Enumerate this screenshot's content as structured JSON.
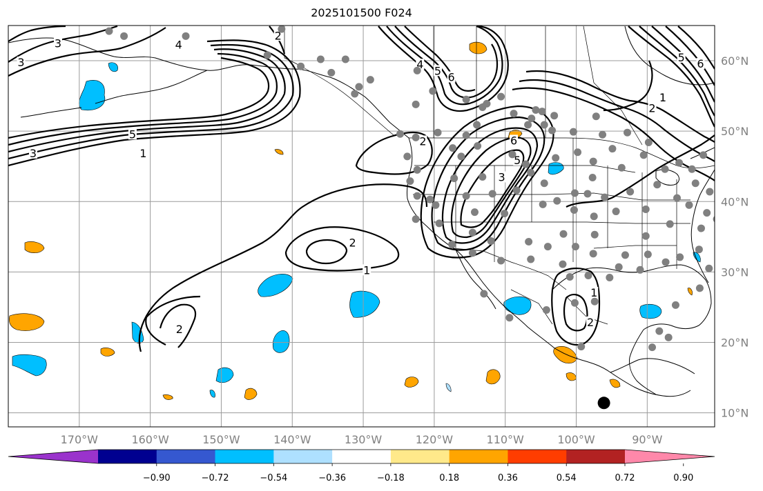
{
  "title": "2025101500 F024",
  "lon_labels": [
    {
      "text": "170°W",
      "lon": -170
    },
    {
      "text": "160°W",
      "lon": -160
    },
    {
      "text": "150°W",
      "lon": -150
    },
    {
      "text": "140°W",
      "lon": -140
    },
    {
      "text": "130°W",
      "lon": -130
    },
    {
      "text": "120°W",
      "lon": -120
    },
    {
      "text": "110°W",
      "lon": -110
    },
    {
      "text": "100°W",
      "lon": -100
    },
    {
      "text": "90°W",
      "lon": -90
    }
  ],
  "lat_labels": [
    {
      "text": "60°N",
      "lat": 60
    },
    {
      "text": "50°N",
      "lat": 50
    },
    {
      "text": "40°N",
      "lat": 40
    },
    {
      "text": "30°N",
      "lat": 30
    },
    {
      "text": "20°N",
      "lat": 20
    },
    {
      "text": "10°N",
      "lat": 10
    }
  ],
  "map_extent": {
    "lon_min": -180,
    "lon_max": -80.5,
    "lat_min": 8,
    "lat_max": 65
  },
  "colorbar": {
    "colors": [
      "#9a33cc",
      "#000090",
      "#3558d0",
      "#00bfff",
      "#aee0ff",
      "#ffffff",
      "#ffe98a",
      "#ffa500",
      "#ff3d00",
      "#b22222",
      "#ff88aa"
    ],
    "ticks": [
      "−0.90",
      "−0.72",
      "−0.54",
      "−0.36",
      "−0.18",
      "0.18",
      "0.36",
      "0.54",
      "0.72",
      "0.90"
    ]
  },
  "contour_labels": [
    {
      "text": "4",
      "lon": -156,
      "lat": 62.2
    },
    {
      "text": "3",
      "lon": -173,
      "lat": 62.4
    },
    {
      "text": "2",
      "lon": -142,
      "lat": 63.5
    },
    {
      "text": "3",
      "lon": -178.2,
      "lat": 59.7
    },
    {
      "text": "3",
      "lon": -176.5,
      "lat": 46.8
    },
    {
      "text": "5",
      "lon": -162.5,
      "lat": 49.5
    },
    {
      "text": "1",
      "lon": -161,
      "lat": 46.8
    },
    {
      "text": "4",
      "lon": -122,
      "lat": 59.4
    },
    {
      "text": "5",
      "lon": -119.5,
      "lat": 58.5
    },
    {
      "text": "6",
      "lon": -117.6,
      "lat": 57.6
    },
    {
      "text": "2",
      "lon": -121.6,
      "lat": 48.5
    },
    {
      "text": "2",
      "lon": -131.5,
      "lat": 34.1
    },
    {
      "text": "1",
      "lon": -129.5,
      "lat": 30.2
    },
    {
      "text": "2",
      "lon": -155.9,
      "lat": 21.8
    },
    {
      "text": "6",
      "lon": -108.8,
      "lat": 48.6
    },
    {
      "text": "5",
      "lon": -108.3,
      "lat": 45.8
    },
    {
      "text": "3",
      "lon": -110.5,
      "lat": 43.4
    },
    {
      "text": "1",
      "lon": -87.8,
      "lat": 54.7
    },
    {
      "text": "2",
      "lon": -89.3,
      "lat": 53.2
    },
    {
      "text": "5",
      "lon": -85.2,
      "lat": 60.4
    },
    {
      "text": "6",
      "lon": -82.5,
      "lat": 59.5
    },
    {
      "text": "1",
      "lon": -97.5,
      "lat": 27.0
    },
    {
      "text": "2",
      "lon": -98,
      "lat": 22.8
    }
  ],
  "station_dots": [
    [
      -165.8,
      64.2
    ],
    [
      -163.7,
      63.5
    ],
    [
      -155,
      63.5
    ],
    [
      -141.5,
      64.5
    ],
    [
      -143.5,
      60.8
    ],
    [
      -136,
      60.2
    ],
    [
      -129,
      57.3
    ],
    [
      -138.8,
      59.2
    ],
    [
      -134.5,
      58.3
    ],
    [
      -130.6,
      56.3
    ],
    [
      -122.4,
      58.6
    ],
    [
      -120.2,
      55.7
    ],
    [
      -122.6,
      53.8
    ],
    [
      -113.2,
      53.4
    ],
    [
      -112.6,
      53.9
    ],
    [
      -105.7,
      53.0
    ],
    [
      -115.5,
      54.5
    ],
    [
      -110.6,
      54.9
    ],
    [
      -104.5,
      50.9
    ],
    [
      -104.8,
      52.8
    ],
    [
      -108.8,
      52.5
    ],
    [
      -106.3,
      51.8
    ],
    [
      -106.8,
      50.9
    ],
    [
      -114,
      50.9
    ],
    [
      -124.8,
      49.6
    ],
    [
      -122.6,
      49.1
    ],
    [
      -119.5,
      49.8
    ],
    [
      -115.5,
      49.4
    ],
    [
      -117.4,
      47.6
    ],
    [
      -113.9,
      47.9
    ],
    [
      -103.1,
      52.2
    ],
    [
      -97.2,
      52.1
    ],
    [
      -100.4,
      49.9
    ],
    [
      -103.4,
      50.1
    ],
    [
      -96.3,
      49.5
    ],
    [
      -92.8,
      49.8
    ],
    [
      -89.8,
      48.4
    ],
    [
      -99.8,
      47.0
    ],
    [
      -94.9,
      47.5
    ],
    [
      -97.6,
      45.7
    ],
    [
      -90.5,
      46.6
    ],
    [
      -97.7,
      43.4
    ],
    [
      -93.6,
      44.8
    ],
    [
      -87.5,
      44.6
    ],
    [
      -85.5,
      45.5
    ],
    [
      -83.7,
      44.6
    ],
    [
      -83.2,
      42.6
    ],
    [
      -88.6,
      42.4
    ],
    [
      -92.4,
      41.4
    ],
    [
      -85.8,
      40.5
    ],
    [
      -90.2,
      38.9
    ],
    [
      -84.1,
      39.5
    ],
    [
      -81.2,
      41.4
    ],
    [
      -86.8,
      36.8
    ],
    [
      -82.4,
      36.2
    ],
    [
      -80.2,
      37.5
    ],
    [
      -81.3,
      30.5
    ],
    [
      -85.4,
      32.1
    ],
    [
      -87.4,
      31.4
    ],
    [
      -82.7,
      33.2
    ],
    [
      -90.2,
      35.1
    ],
    [
      -89.9,
      32.5
    ],
    [
      -93.1,
      32.4
    ],
    [
      -91,
      30.3
    ],
    [
      -94,
      30.7
    ],
    [
      -95.3,
      29.2
    ],
    [
      -97.6,
      32.6
    ],
    [
      -100.1,
      33.6
    ],
    [
      -97.4,
      35.3
    ],
    [
      -101.8,
      35.4
    ],
    [
      -97.5,
      37.9
    ],
    [
      -100.3,
      38.8
    ],
    [
      -94.4,
      38.6
    ],
    [
      -96,
      40.6
    ],
    [
      -98.4,
      41.1
    ],
    [
      -100.2,
      41.2
    ],
    [
      -102.7,
      40.1
    ],
    [
      -104.7,
      39.6
    ],
    [
      -104.5,
      42.6
    ],
    [
      -108.4,
      41.6
    ],
    [
      -111.8,
      41.1
    ],
    [
      -110.1,
      38.3
    ],
    [
      -114.3,
      38.5
    ],
    [
      -115.5,
      40.8
    ],
    [
      -119.8,
      39.5
    ],
    [
      -117.2,
      43.3
    ],
    [
      -113.2,
      43.5
    ],
    [
      -116.2,
      46.4
    ],
    [
      -109,
      46.7
    ],
    [
      -107.1,
      45.3
    ],
    [
      -106.4,
      44.1
    ],
    [
      -102.9,
      46.2
    ],
    [
      -122.4,
      44.5
    ],
    [
      -123.4,
      42.9
    ],
    [
      -122.4,
      40.8
    ],
    [
      -120.6,
      40.3
    ],
    [
      -122.6,
      37.5
    ],
    [
      -119.3,
      36.9
    ],
    [
      -117.5,
      33.9
    ],
    [
      -114.6,
      35.6
    ],
    [
      -112,
      34.4
    ],
    [
      -110.6,
      31.6
    ],
    [
      -106.4,
      31.8
    ],
    [
      -106.7,
      34.3
    ],
    [
      -104,
      33.6
    ],
    [
      -101.9,
      31.1
    ],
    [
      -98.3,
      29.5
    ],
    [
      -97.4,
      25.8
    ],
    [
      -99.3,
      19.4
    ],
    [
      -100.2,
      25.6
    ],
    [
      -100.9,
      29.3
    ],
    [
      -88.3,
      21.6
    ],
    [
      -87,
      20.7
    ],
    [
      -86,
      25.3
    ],
    [
      -82.6,
      27.7
    ],
    [
      -89.3,
      19.3
    ],
    [
      -123.8,
      46.4
    ],
    [
      -82.1,
      46.6
    ],
    [
      -79.8,
      43.8
    ],
    [
      -81.6,
      38.4
    ],
    [
      -114.6,
      32.7
    ],
    [
      -104.2,
      24.6
    ],
    [
      -109.4,
      23.5
    ],
    [
      -113,
      26.9
    ],
    [
      -131.2,
      55.3
    ],
    [
      -132.5,
      60.2
    ]
  ],
  "black_dot": [
    -96.1,
    11.4
  ]
}
